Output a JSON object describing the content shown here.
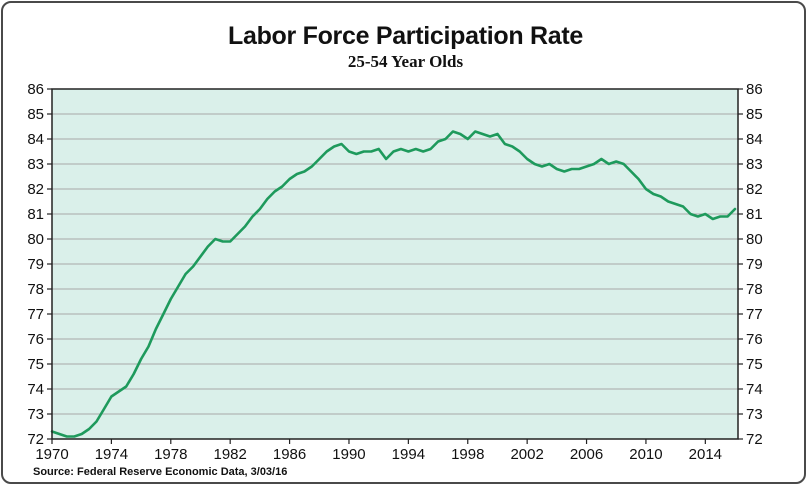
{
  "chart_data": {
    "type": "line",
    "title": "Labor Force Participation Rate",
    "subtitle": "25-54 Year Olds",
    "source": "Source:  Federal Reserve Economic Data, 3/03/16",
    "xlabel": "",
    "ylabel": "",
    "xlim": [
      1970,
      2016.2
    ],
    "ylim": [
      72,
      86
    ],
    "x_ticks": [
      "1970",
      "1974",
      "1978",
      "1982",
      "1986",
      "1990",
      "1994",
      "1998",
      "2002",
      "2006",
      "2010",
      "2014"
    ],
    "y_ticks": [
      "72",
      "73",
      "74",
      "75",
      "76",
      "77",
      "78",
      "79",
      "80",
      "81",
      "82",
      "83",
      "84",
      "85",
      "86"
    ],
    "grid": true,
    "legend": "none",
    "colors": {
      "line": "#1e9a5c",
      "plot_bg": "#daf0ea",
      "grid": "#a8a8a8",
      "axis": "#222222"
    },
    "series": [
      {
        "x": [
          1970.0,
          1970.5,
          1971.0,
          1971.5,
          1972.0,
          1972.5,
          1973.0,
          1973.5,
          1974.0,
          1974.5,
          1975.0,
          1975.5,
          1976.0,
          1976.5,
          1977.0,
          1977.5,
          1978.0,
          1978.5,
          1979.0,
          1979.5,
          1980.0,
          1980.5,
          1981.0,
          1981.5,
          1982.0,
          1982.5,
          1983.0,
          1983.5,
          1984.0,
          1984.5,
          1985.0,
          1985.5,
          1986.0,
          1986.5,
          1987.0,
          1987.5,
          1988.0,
          1988.5,
          1989.0,
          1989.5,
          1990.0,
          1990.5,
          1991.0,
          1991.5,
          1992.0,
          1992.5,
          1993.0,
          1993.5,
          1994.0,
          1994.5,
          1995.0,
          1995.5,
          1996.0,
          1996.5,
          1997.0,
          1997.5,
          1998.0,
          1998.5,
          1999.0,
          1999.5,
          2000.0,
          2000.5,
          2001.0,
          2001.5,
          2002.0,
          2002.5,
          2003.0,
          2003.5,
          2004.0,
          2004.5,
          2005.0,
          2005.5,
          2006.0,
          2006.5,
          2007.0,
          2007.5,
          2008.0,
          2008.5,
          2009.0,
          2009.5,
          2010.0,
          2010.5,
          2011.0,
          2011.5,
          2012.0,
          2012.5,
          2013.0,
          2013.5,
          2014.0,
          2014.5,
          2015.0,
          2015.5,
          2016.0
        ],
        "values": [
          72.3,
          72.2,
          72.1,
          72.1,
          72.2,
          72.4,
          72.7,
          73.2,
          73.7,
          73.9,
          74.1,
          74.6,
          75.2,
          75.7,
          76.4,
          77.0,
          77.6,
          78.1,
          78.6,
          78.9,
          79.3,
          79.7,
          80.0,
          79.9,
          79.9,
          80.2,
          80.5,
          80.9,
          81.2,
          81.6,
          81.9,
          82.1,
          82.4,
          82.6,
          82.7,
          82.9,
          83.2,
          83.5,
          83.7,
          83.8,
          83.5,
          83.4,
          83.5,
          83.5,
          83.6,
          83.2,
          83.5,
          83.6,
          83.5,
          83.6,
          83.5,
          83.6,
          83.9,
          84.0,
          84.3,
          84.2,
          84.0,
          84.3,
          84.2,
          84.1,
          84.2,
          83.8,
          83.7,
          83.5,
          83.2,
          83.0,
          82.9,
          83.0,
          82.8,
          82.7,
          82.8,
          82.8,
          82.9,
          83.0,
          83.2,
          83.0,
          83.1,
          83.0,
          82.7,
          82.4,
          82.0,
          81.8,
          81.7,
          81.5,
          81.4,
          81.3,
          81.0,
          80.9,
          81.0,
          80.8,
          80.9,
          80.9,
          81.2
        ]
      }
    ]
  }
}
